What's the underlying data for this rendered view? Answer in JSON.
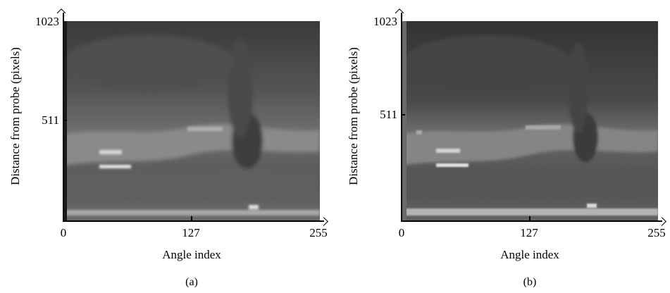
{
  "panels": [
    {
      "caption": "(a)",
      "ylabel": "Distance from probe (pixels)",
      "xlabel": "Angle index",
      "y_ticks": [
        "1023",
        "511"
      ],
      "x_ticks": [
        "0",
        "127",
        "255"
      ],
      "image": "grayscale ultrasound image (polar, unprocessed)"
    },
    {
      "caption": "(b)",
      "ylabel": "Distance from probe (pixels)",
      "xlabel": "Angle index",
      "y_ticks": [
        "1023",
        "511"
      ],
      "x_ticks": [
        "0",
        "127",
        "255"
      ],
      "image": "grayscale ultrasound image (polar, filtered)"
    }
  ],
  "colors": {
    "axis": "#000000",
    "background": "#ffffff"
  }
}
